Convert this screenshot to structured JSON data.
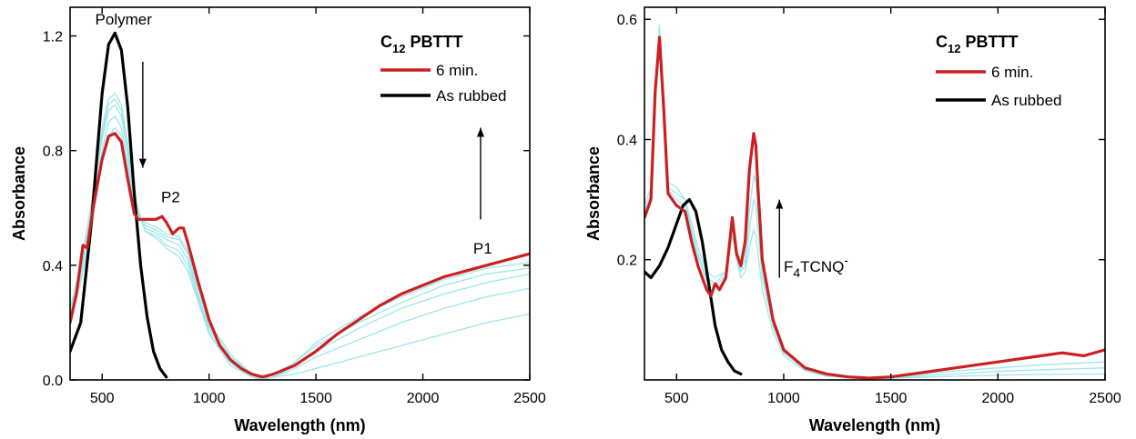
{
  "chart_data": [
    {
      "type": "line",
      "panel": "left",
      "xlabel": "Wavelength (nm)",
      "ylabel": "Absorbance",
      "xlim": [
        350,
        2500
      ],
      "ylim": [
        0.0,
        1.3
      ],
      "xticks": [
        500,
        1000,
        1500,
        2000,
        2500
      ],
      "yticks": [
        0.0,
        0.4,
        0.8,
        1.2
      ],
      "xtick_labels": [
        "500",
        "1000",
        "1500",
        "2000",
        "2500"
      ],
      "ytick_labels": [
        "0.0",
        "0.4",
        "0.8",
        "1.2"
      ],
      "legend": {
        "title_main": "C",
        "title_sub": "12",
        "title_rest": " PBTTT",
        "placement": "top-right",
        "entries": [
          {
            "label": "6   min.",
            "color": "#cc1f1f"
          },
          {
            "label": "As rubbed",
            "color": "#000000"
          }
        ]
      },
      "annotations": [
        {
          "text": "Polymer",
          "x": 600,
          "y": 1.24
        },
        {
          "text": "P2",
          "x": 820,
          "y": 0.62
        },
        {
          "text": "P1",
          "x": 2280,
          "y": 0.44
        }
      ],
      "arrows": [
        {
          "x": 690,
          "y_from": 1.11,
          "y_to": 0.74,
          "direction": "down"
        },
        {
          "x": 2270,
          "y_from": 0.56,
          "y_to": 0.88,
          "direction": "up"
        }
      ],
      "series": [
        {
          "role": "red",
          "color": "#cc1f1f",
          "width": 3.2,
          "x": [
            350,
            380,
            410,
            430,
            460,
            500,
            530,
            560,
            590,
            620,
            650,
            670,
            700,
            750,
            780,
            800,
            830,
            860,
            880,
            900,
            950,
            1000,
            1050,
            1100,
            1150,
            1200,
            1250,
            1300,
            1400,
            1500,
            1600,
            1700,
            1800,
            1900,
            2000,
            2100,
            2200,
            2300,
            2400,
            2500
          ],
          "y": [
            0.2,
            0.3,
            0.47,
            0.46,
            0.61,
            0.77,
            0.85,
            0.86,
            0.83,
            0.7,
            0.58,
            0.56,
            0.56,
            0.56,
            0.57,
            0.55,
            0.51,
            0.53,
            0.53,
            0.48,
            0.34,
            0.21,
            0.12,
            0.07,
            0.04,
            0.02,
            0.01,
            0.02,
            0.05,
            0.1,
            0.16,
            0.21,
            0.26,
            0.3,
            0.33,
            0.36,
            0.38,
            0.4,
            0.42,
            0.44
          ]
        },
        {
          "role": "black",
          "color": "#000000",
          "width": 3.2,
          "x": [
            350,
            400,
            450,
            500,
            530,
            560,
            590,
            620,
            650,
            680,
            710,
            740,
            770,
            800
          ],
          "y": [
            0.1,
            0.2,
            0.55,
            1.0,
            1.17,
            1.21,
            1.15,
            0.95,
            0.65,
            0.4,
            0.22,
            0.1,
            0.04,
            0.01
          ]
        },
        {
          "role": "cyan",
          "color": "#9fe6ec",
          "width": 1.3,
          "x": [
            350,
            400,
            450,
            500,
            530,
            560,
            590,
            620,
            660,
            700,
            760,
            800,
            860,
            900,
            950,
            1000,
            1100,
            1200,
            1250,
            1300,
            1400,
            1500,
            1700,
            1900,
            2100,
            2300,
            2500
          ],
          "y": [
            0.25,
            0.4,
            0.62,
            0.88,
            0.98,
            1.0,
            0.96,
            0.82,
            0.62,
            0.52,
            0.49,
            0.46,
            0.43,
            0.38,
            0.27,
            0.16,
            0.05,
            0.01,
            0.0,
            0.01,
            0.02,
            0.04,
            0.08,
            0.12,
            0.16,
            0.2,
            0.23
          ]
        },
        {
          "role": "cyan",
          "color": "#9fe6ec",
          "width": 1.3,
          "x": [
            350,
            400,
            450,
            500,
            530,
            560,
            590,
            620,
            660,
            700,
            760,
            800,
            860,
            900,
            950,
            1000,
            1100,
            1200,
            1250,
            1300,
            1400,
            1500,
            1700,
            1900,
            2100,
            2300,
            2500
          ],
          "y": [
            0.24,
            0.39,
            0.61,
            0.86,
            0.96,
            0.98,
            0.94,
            0.8,
            0.61,
            0.52,
            0.5,
            0.47,
            0.45,
            0.4,
            0.28,
            0.17,
            0.06,
            0.01,
            0.0,
            0.01,
            0.04,
            0.08,
            0.14,
            0.2,
            0.25,
            0.29,
            0.32
          ]
        },
        {
          "role": "cyan",
          "color": "#9fe6ec",
          "width": 1.3,
          "x": [
            350,
            400,
            450,
            500,
            530,
            560,
            590,
            620,
            660,
            700,
            760,
            800,
            860,
            900,
            950,
            1000,
            1100,
            1200,
            1250,
            1300,
            1400,
            1500,
            1700,
            1900,
            2100,
            2300,
            2500
          ],
          "y": [
            0.23,
            0.38,
            0.6,
            0.84,
            0.94,
            0.96,
            0.92,
            0.79,
            0.6,
            0.53,
            0.51,
            0.49,
            0.47,
            0.42,
            0.29,
            0.18,
            0.07,
            0.01,
            0.0,
            0.01,
            0.05,
            0.1,
            0.18,
            0.25,
            0.3,
            0.34,
            0.37
          ]
        },
        {
          "role": "cyan",
          "color": "#9fe6ec",
          "width": 1.3,
          "x": [
            350,
            400,
            450,
            500,
            530,
            560,
            590,
            620,
            660,
            700,
            760,
            800,
            860,
            900,
            950,
            1000,
            1100,
            1200,
            1250,
            1300,
            1400,
            1500,
            1700,
            1900,
            2100,
            2300,
            2500
          ],
          "y": [
            0.22,
            0.36,
            0.57,
            0.8,
            0.9,
            0.92,
            0.88,
            0.76,
            0.59,
            0.54,
            0.52,
            0.5,
            0.49,
            0.44,
            0.3,
            0.19,
            0.08,
            0.02,
            0.0,
            0.02,
            0.06,
            0.12,
            0.2,
            0.27,
            0.33,
            0.37,
            0.39
          ]
        },
        {
          "role": "cyan",
          "color": "#9fe6ec",
          "width": 1.3,
          "x": [
            350,
            400,
            450,
            500,
            530,
            560,
            590,
            620,
            660,
            700,
            760,
            800,
            860,
            900,
            950,
            1000,
            1100,
            1200,
            1250,
            1300,
            1400,
            1500,
            1700,
            1900,
            2100,
            2300,
            2500
          ],
          "y": [
            0.21,
            0.34,
            0.53,
            0.76,
            0.85,
            0.88,
            0.85,
            0.73,
            0.58,
            0.55,
            0.53,
            0.51,
            0.5,
            0.45,
            0.32,
            0.2,
            0.09,
            0.02,
            0.01,
            0.02,
            0.06,
            0.13,
            0.22,
            0.29,
            0.35,
            0.39,
            0.41
          ]
        }
      ]
    },
    {
      "type": "line",
      "panel": "right",
      "xlabel": "Wavelength (nm)",
      "ylabel": "Absorbance",
      "xlim": [
        350,
        2500
      ],
      "ylim": [
        0.0,
        0.62
      ],
      "xticks": [
        500,
        1000,
        1500,
        2000,
        2500
      ],
      "yticks": [
        0.2,
        0.4,
        0.6
      ],
      "xtick_labels": [
        "500",
        "1000",
        "1500",
        "2000",
        "2500"
      ],
      "ytick_labels": [
        "0.2",
        "0.4",
        "0.6"
      ],
      "legend": {
        "title_main": "C",
        "title_sub": "12",
        "title_rest": " PBTTT",
        "placement": "top-right",
        "entries": [
          {
            "label": "6   min.",
            "color": "#cc1f1f"
          },
          {
            "label": "As rubbed",
            "color": "#000000"
          }
        ]
      },
      "annotations": [
        {
          "text_main": "F",
          "text_sub": "4",
          "text_rest": "TCNQ",
          "text_sup": "-",
          "x": 1000,
          "y": 0.18
        }
      ],
      "arrows": [
        {
          "x": 980,
          "y_from": 0.17,
          "y_to": 0.3,
          "direction": "up"
        }
      ],
      "series": [
        {
          "role": "red",
          "color": "#cc1f1f",
          "width": 3.2,
          "x": [
            350,
            380,
            400,
            420,
            440,
            460,
            500,
            540,
            570,
            600,
            640,
            660,
            680,
            700,
            730,
            760,
            780,
            800,
            820,
            840,
            860,
            870,
            880,
            900,
            950,
            1000,
            1100,
            1200,
            1300,
            1400,
            1500,
            1600,
            1800,
            2000,
            2200,
            2300,
            2400,
            2500
          ],
          "y": [
            0.27,
            0.3,
            0.48,
            0.57,
            0.45,
            0.31,
            0.29,
            0.28,
            0.23,
            0.19,
            0.15,
            0.14,
            0.16,
            0.15,
            0.17,
            0.27,
            0.21,
            0.19,
            0.23,
            0.35,
            0.41,
            0.39,
            0.32,
            0.2,
            0.1,
            0.05,
            0.02,
            0.01,
            0.005,
            0.003,
            0.005,
            0.01,
            0.02,
            0.03,
            0.04,
            0.045,
            0.04,
            0.05
          ]
        },
        {
          "role": "black",
          "color": "#000000",
          "width": 3.2,
          "x": [
            350,
            380,
            420,
            460,
            500,
            530,
            560,
            590,
            620,
            650,
            680,
            710,
            740,
            770,
            800
          ],
          "y": [
            0.18,
            0.17,
            0.19,
            0.22,
            0.26,
            0.29,
            0.3,
            0.28,
            0.23,
            0.16,
            0.09,
            0.05,
            0.03,
            0.015,
            0.01
          ]
        },
        {
          "role": "cyan",
          "color": "#9fe6ec",
          "width": 1.3,
          "x": [
            350,
            380,
            400,
            420,
            440,
            460,
            500,
            540,
            570,
            600,
            640,
            680,
            730,
            760,
            780,
            800,
            820,
            840,
            860,
            870,
            880,
            900,
            950,
            1000,
            1100,
            1200,
            1400,
            1600,
            1800,
            2000,
            2200,
            2500
          ],
          "y": [
            0.29,
            0.32,
            0.48,
            0.59,
            0.46,
            0.33,
            0.32,
            0.3,
            0.26,
            0.22,
            0.18,
            0.17,
            0.18,
            0.24,
            0.2,
            0.17,
            0.18,
            0.22,
            0.25,
            0.24,
            0.21,
            0.15,
            0.08,
            0.04,
            0.015,
            0.006,
            0.002,
            0.004,
            0.006,
            0.008,
            0.009,
            0.01
          ]
        },
        {
          "role": "cyan",
          "color": "#9fe6ec",
          "width": 1.3,
          "x": [
            350,
            380,
            400,
            420,
            440,
            460,
            500,
            540,
            570,
            600,
            640,
            680,
            730,
            760,
            780,
            800,
            820,
            840,
            860,
            870,
            880,
            900,
            950,
            1000,
            1100,
            1200,
            1400,
            1600,
            1800,
            2000,
            2200,
            2500
          ],
          "y": [
            0.28,
            0.31,
            0.47,
            0.58,
            0.45,
            0.32,
            0.31,
            0.3,
            0.25,
            0.21,
            0.17,
            0.16,
            0.18,
            0.25,
            0.2,
            0.18,
            0.19,
            0.25,
            0.3,
            0.29,
            0.25,
            0.17,
            0.09,
            0.045,
            0.017,
            0.007,
            0.003,
            0.006,
            0.01,
            0.014,
            0.017,
            0.02
          ]
        },
        {
          "role": "cyan",
          "color": "#9fe6ec",
          "width": 1.3,
          "x": [
            350,
            380,
            400,
            420,
            440,
            460,
            500,
            540,
            570,
            600,
            640,
            680,
            730,
            760,
            780,
            800,
            820,
            840,
            860,
            870,
            880,
            900,
            950,
            1000,
            1100,
            1200,
            1400,
            1600,
            1800,
            2000,
            2200,
            2500
          ],
          "y": [
            0.275,
            0.305,
            0.47,
            0.575,
            0.45,
            0.315,
            0.3,
            0.29,
            0.245,
            0.205,
            0.165,
            0.155,
            0.175,
            0.26,
            0.205,
            0.185,
            0.2,
            0.28,
            0.34,
            0.33,
            0.28,
            0.18,
            0.095,
            0.047,
            0.018,
            0.008,
            0.004,
            0.008,
            0.015,
            0.02,
            0.025,
            0.03
          ]
        }
      ]
    }
  ]
}
